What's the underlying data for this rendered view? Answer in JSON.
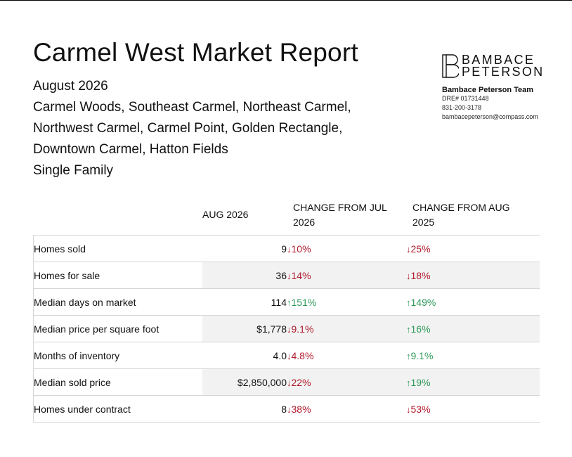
{
  "report": {
    "title": "Carmel West Market Report",
    "subtitle_lines": [
      "August 2026",
      "Carmel Woods, Southeast Carmel, Northeast Carmel,",
      "Northwest Carmel, Carmel Point, Golden Rectangle,",
      "Downtown Carmel, Hatton Fields",
      "Single Family"
    ]
  },
  "brand": {
    "logo_icon": "bp-monogram-icon",
    "logo_line1": "BAMBACE",
    "logo_line2": "PETERSON",
    "team_name": "Bambace Peterson Team",
    "dre": "DRE# 01731448",
    "phone": "831-200-3178",
    "email": "bambacepeterson@compass.com"
  },
  "table": {
    "headers": [
      "",
      "AUG 2026",
      "CHANGE FROM JUL 2026",
      "CHANGE FROM AUG 2025"
    ],
    "rows": [
      {
        "metric": "Homes sold",
        "value": "9",
        "jul": {
          "dir": "down",
          "text": "10%"
        },
        "aug": {
          "dir": "down",
          "text": "25%"
        }
      },
      {
        "metric": "Homes for sale",
        "value": "36",
        "jul": {
          "dir": "down",
          "text": "14%"
        },
        "aug": {
          "dir": "down",
          "text": "18%"
        }
      },
      {
        "metric": "Median days on market",
        "value": "114",
        "jul": {
          "dir": "up",
          "text": "151%"
        },
        "aug": {
          "dir": "up",
          "text": "149%"
        }
      },
      {
        "metric": "Median price per square foot",
        "value": "$1,778",
        "jul": {
          "dir": "down",
          "text": "9.1%"
        },
        "aug": {
          "dir": "up",
          "text": "16%"
        }
      },
      {
        "metric": "Months of inventory",
        "value": "4.0",
        "jul": {
          "dir": "down",
          "text": "4.8%"
        },
        "aug": {
          "dir": "up",
          "text": "9.1%"
        }
      },
      {
        "metric": "Median sold price",
        "value": "$2,850,000",
        "jul": {
          "dir": "down",
          "text": "22%"
        },
        "aug": {
          "dir": "up",
          "text": "19%"
        }
      },
      {
        "metric": "Homes under contract",
        "value": "8",
        "jul": {
          "dir": "down",
          "text": "38%"
        },
        "aug": {
          "dir": "down",
          "text": "53%"
        }
      }
    ],
    "colors": {
      "down": "#b01c2e",
      "up": "#2e9a5a",
      "shade": "#f2f2f2"
    }
  }
}
